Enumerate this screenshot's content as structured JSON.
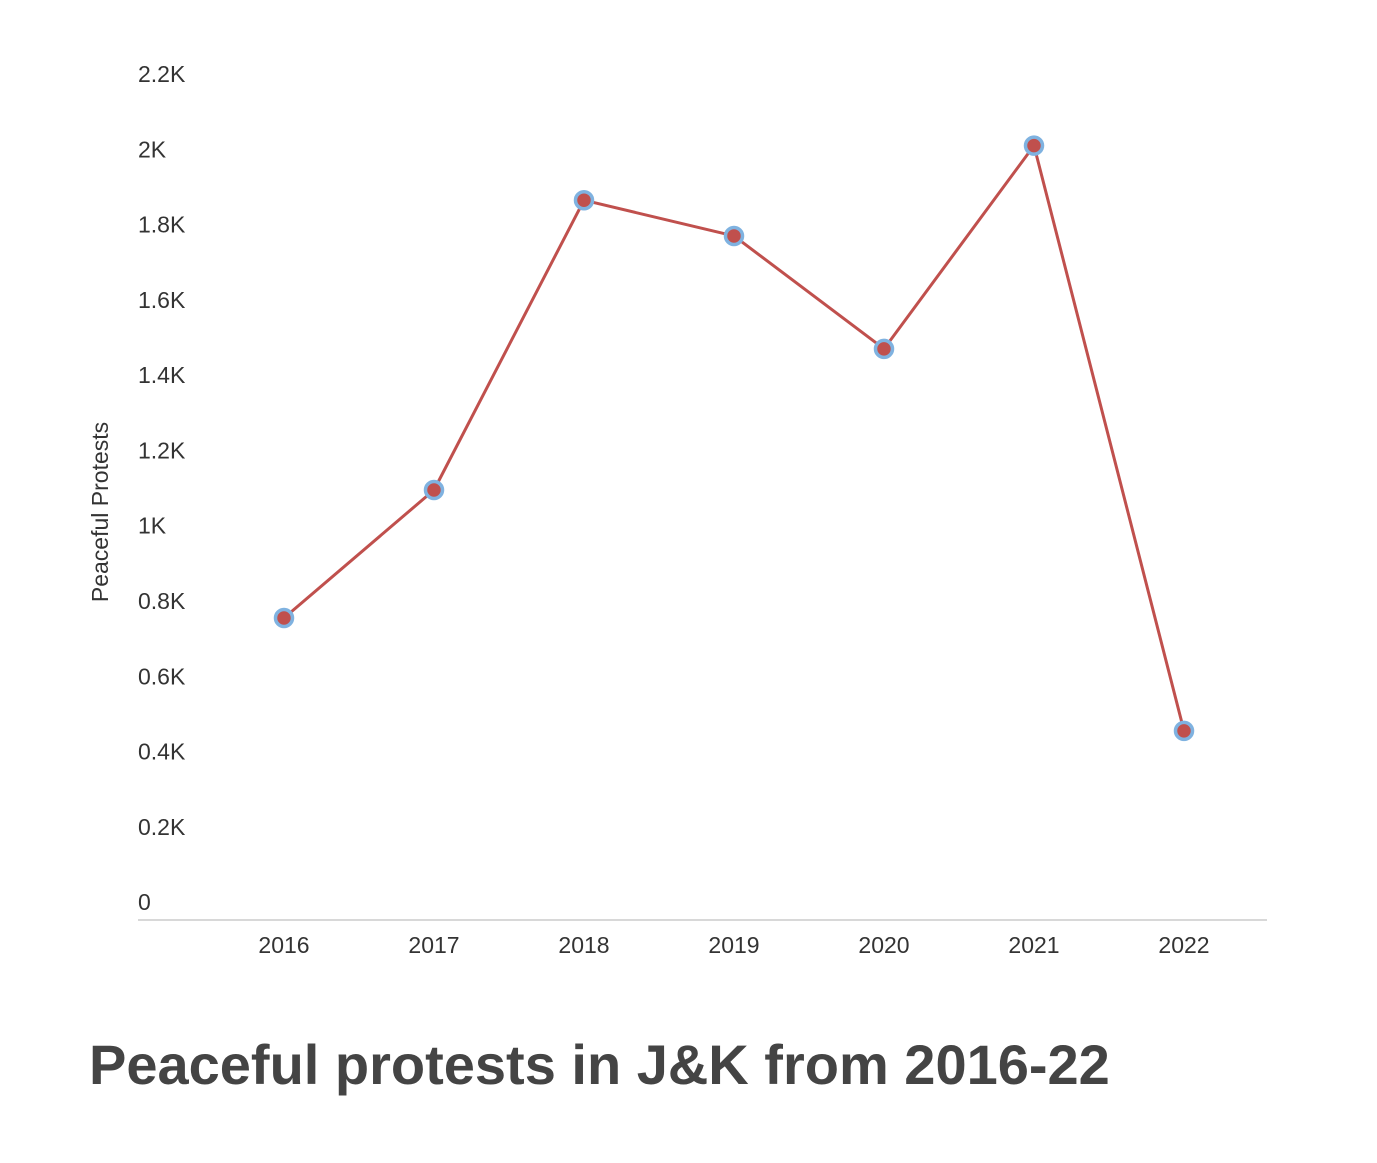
{
  "chart_data": {
    "type": "line",
    "title": "Peaceful protests in J&K from 2016-22",
    "ylabel": "Peaceful Protests",
    "xlabel": "",
    "categories": [
      "2016",
      "2017",
      "2018",
      "2019",
      "2020",
      "2021",
      "2022"
    ],
    "series": [
      {
        "values": [
          760,
          1100,
          1870,
          1775,
          1475,
          2015,
          460
        ]
      }
    ],
    "ylim": [
      0,
      2200
    ],
    "yticks": [
      {
        "value": 0,
        "label": "0"
      },
      {
        "value": 200,
        "label": "0.2K"
      },
      {
        "value": 400,
        "label": "0.4K"
      },
      {
        "value": 600,
        "label": "0.6K"
      },
      {
        "value": 800,
        "label": "0.8K"
      },
      {
        "value": 1000,
        "label": "1K"
      },
      {
        "value": 1200,
        "label": "1.2K"
      },
      {
        "value": 1400,
        "label": "1.4K"
      },
      {
        "value": 1600,
        "label": "1.6K"
      },
      {
        "value": 1800,
        "label": "1.8K"
      },
      {
        "value": 2000,
        "label": "2K"
      },
      {
        "value": 2200,
        "label": "2.2K"
      }
    ],
    "grid": false,
    "line_color": "#c0504d",
    "marker_fill": "#c0504d",
    "marker_stroke": "#7fb2e0"
  }
}
